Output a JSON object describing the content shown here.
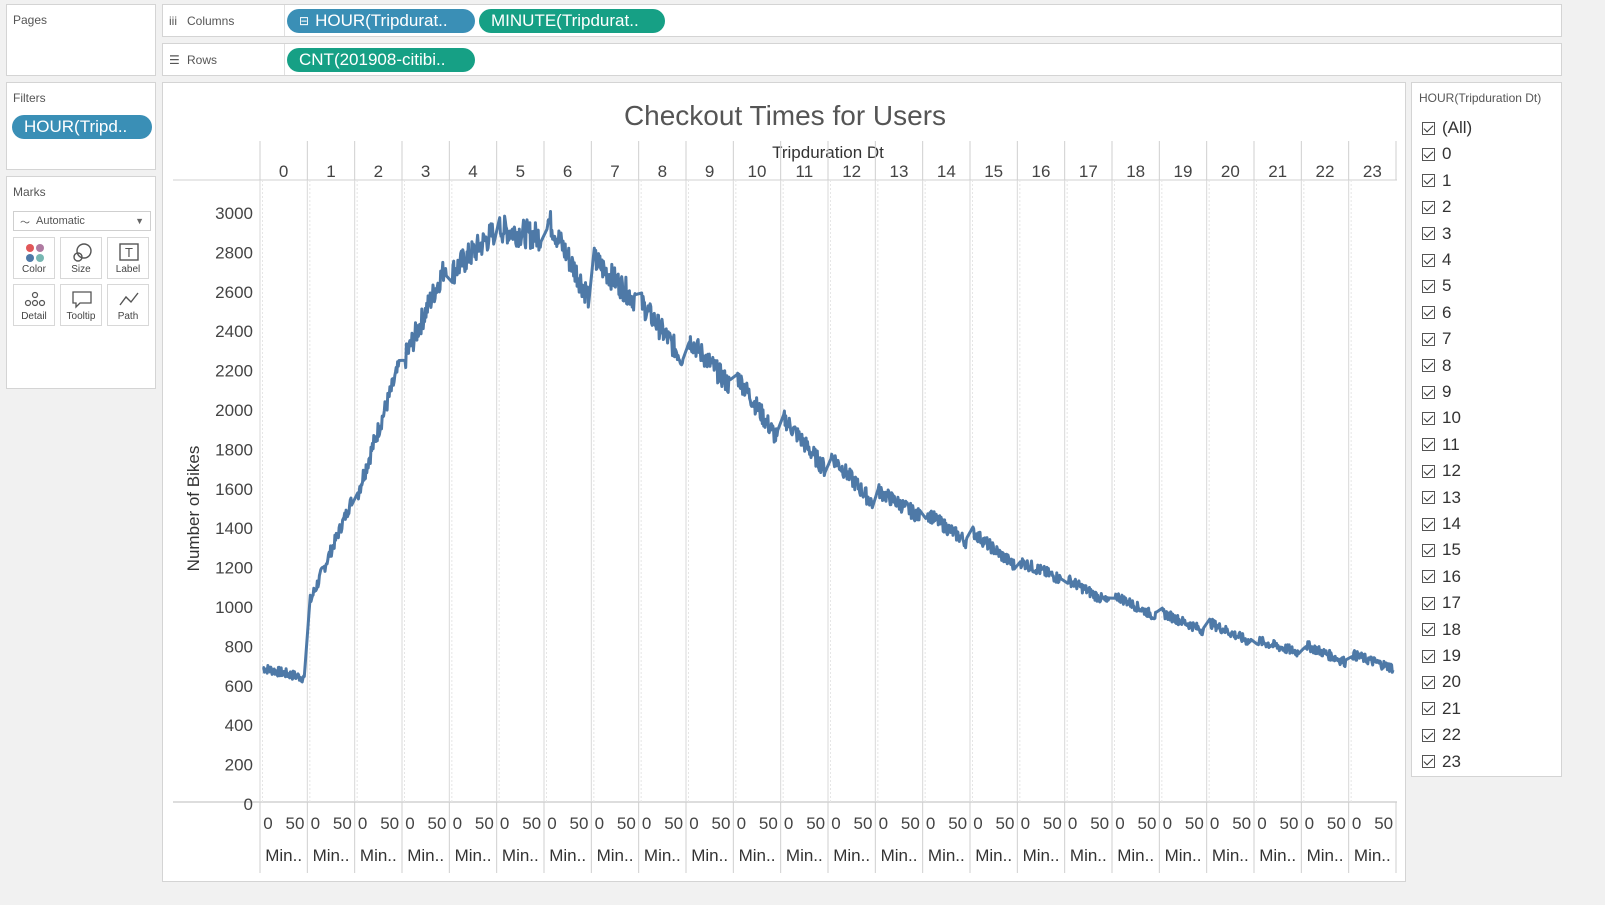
{
  "pages_panel": {
    "title": "Pages"
  },
  "filters_panel": {
    "title": "Filters",
    "pill": "HOUR(Tripd.."
  },
  "marks_panel": {
    "title": "Marks",
    "mark_type": "Automatic",
    "buttons": [
      "Color",
      "Size",
      "Label",
      "Detail",
      "Tooltip",
      "Path"
    ]
  },
  "columns_shelf": {
    "label": "Columns",
    "pills": [
      "HOUR(Tripdurat..",
      "MINUTE(Tripdurat.."
    ]
  },
  "rows_shelf": {
    "label": "Rows",
    "pills": [
      "CNT(201908-citibi.."
    ]
  },
  "legend": {
    "title": "HOUR(Tripduration Dt)",
    "items": [
      "(All)",
      "0",
      "1",
      "2",
      "3",
      "4",
      "5",
      "6",
      "7",
      "8",
      "9",
      "10",
      "11",
      "12",
      "13",
      "14",
      "15",
      "16",
      "17",
      "18",
      "19",
      "20",
      "21",
      "22",
      "23"
    ]
  },
  "chart_data": {
    "type": "line",
    "title": "Checkout Times for Users",
    "top_axis_title": "Tripduration Dt",
    "ylabel": "Number of Bikes",
    "ylim": [
      0,
      3000
    ],
    "y_ticks": [
      0,
      200,
      400,
      600,
      800,
      1000,
      1200,
      1400,
      1600,
      1800,
      2000,
      2200,
      2400,
      2600,
      2800,
      3000
    ],
    "hours": [
      "0",
      "1",
      "2",
      "3",
      "4",
      "5",
      "6",
      "7",
      "8",
      "9",
      "10",
      "11",
      "12",
      "13",
      "14",
      "15",
      "16",
      "17",
      "18",
      "19",
      "20",
      "21",
      "22",
      "23"
    ],
    "minute_ticks": [
      "0",
      "50"
    ],
    "minute_axis_label": "Min..",
    "grid": false,
    "series": [
      {
        "color": "#4e79a7",
        "hour_start_end": [
          [
            690,
            640
          ],
          [
            1030,
            1540
          ],
          [
            1580,
            2220
          ],
          [
            2260,
            2740
          ],
          [
            2700,
            2900
          ],
          [
            2920,
            2880
          ],
          [
            2980,
            2580
          ],
          [
            2760,
            2560
          ],
          [
            2540,
            2260
          ],
          [
            2360,
            2120
          ],
          [
            2180,
            1850
          ],
          [
            1960,
            1700
          ],
          [
            1770,
            1530
          ],
          [
            1590,
            1460
          ],
          [
            1480,
            1330
          ],
          [
            1380,
            1210
          ],
          [
            1230,
            1140
          ],
          [
            1140,
            1020
          ],
          [
            1060,
            950
          ],
          [
            970,
            880
          ],
          [
            920,
            820
          ],
          [
            830,
            770
          ],
          [
            810,
            720
          ],
          [
            760,
            690
          ]
        ]
      }
    ]
  }
}
